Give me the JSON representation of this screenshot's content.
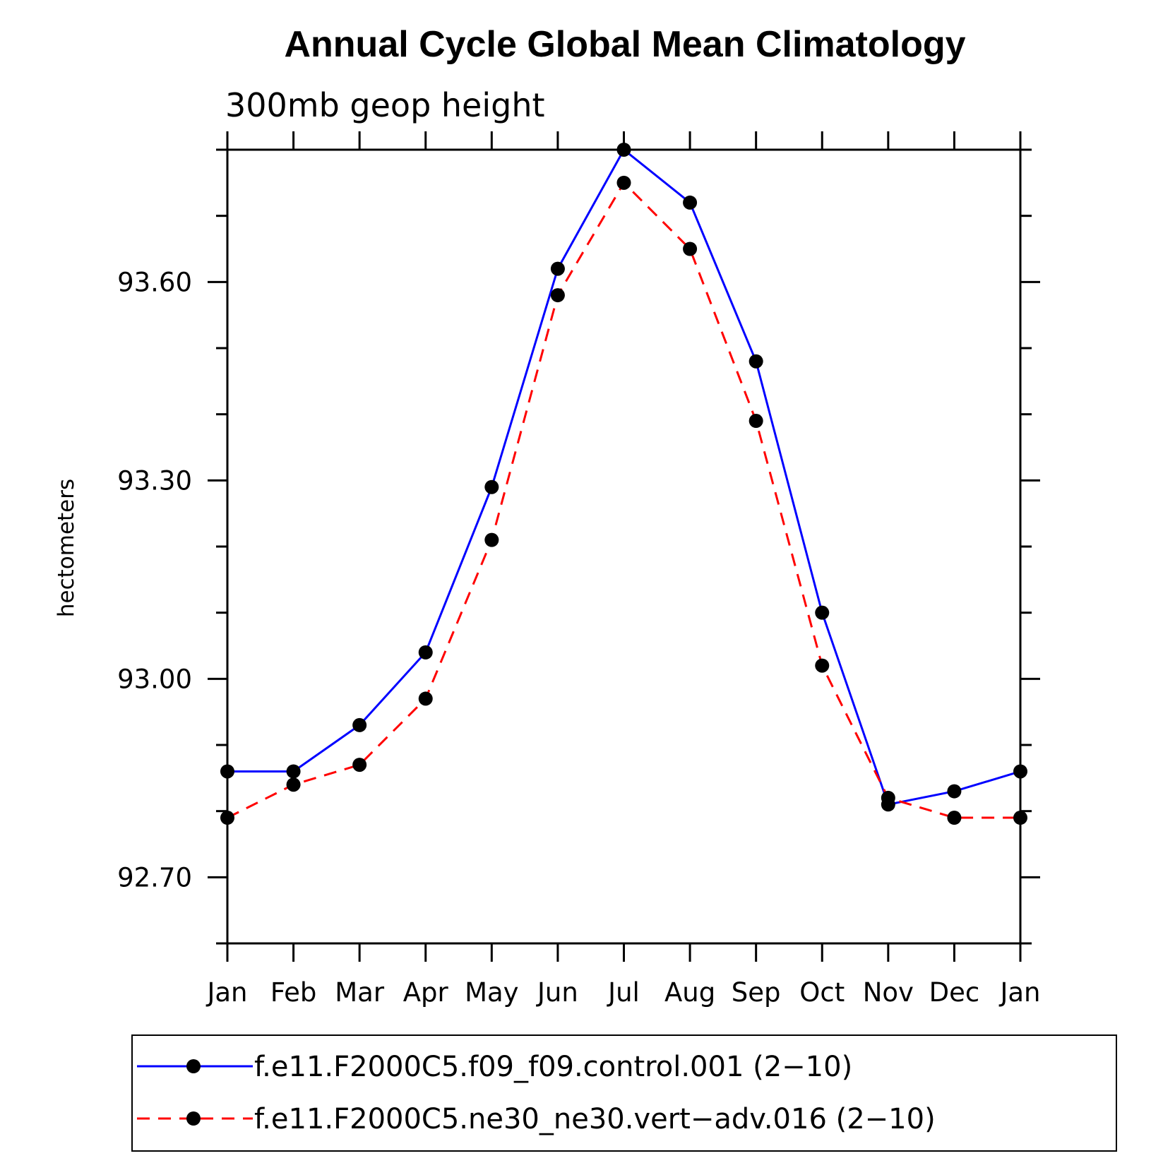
{
  "chart_data": {
    "type": "line",
    "title": "Annual Cycle Global Mean Climatology",
    "subtitle": "300mb geop height",
    "ylabel": "hectometers",
    "categories": [
      "Jan",
      "Feb",
      "Mar",
      "Apr",
      "May",
      "Jun",
      "Jul",
      "Aug",
      "Sep",
      "Oct",
      "Nov",
      "Dec",
      "Jan"
    ],
    "ylim": [
      92.6,
      93.8
    ],
    "yticks": [
      "92.70",
      "93.00",
      "93.30",
      "93.60"
    ],
    "grid": false,
    "legend_position": "bottom",
    "series": [
      {
        "name": "f.e11.F2000C5.f09_f09.control.001 (2−10)",
        "color": "#0000ff",
        "dash": "solid",
        "marker": "filled-circle",
        "values": [
          92.86,
          92.86,
          92.93,
          93.04,
          93.29,
          93.62,
          93.8,
          93.72,
          93.48,
          93.1,
          92.81,
          92.83,
          92.86
        ]
      },
      {
        "name": "f.e11.F2000C5.ne30_ne30.vert−adv.016 (2−10)",
        "color": "#ff0000",
        "dash": "dashed",
        "marker": "filled-circle",
        "values": [
          92.79,
          92.84,
          92.87,
          92.97,
          93.21,
          93.58,
          93.75,
          93.65,
          93.39,
          93.02,
          92.82,
          92.79,
          92.79
        ]
      }
    ]
  }
}
